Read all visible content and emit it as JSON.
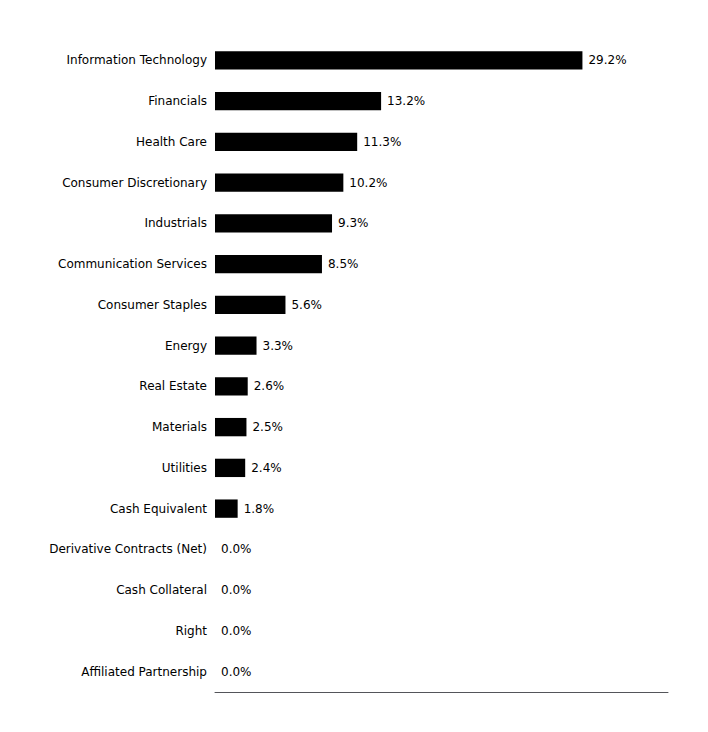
{
  "chart_data": {
    "type": "bar",
    "orientation": "horizontal",
    "categories": [
      "Information Technology",
      "Financials",
      "Health Care",
      "Consumer Discretionary",
      "Industrials",
      "Communication Services",
      "Consumer Staples",
      "Energy",
      "Real Estate",
      "Materials",
      "Utilities",
      "Cash Equivalent",
      "Derivative Contracts (Net)",
      "Cash Collateral",
      "Right",
      "Affiliated Partnership"
    ],
    "values": [
      29.2,
      13.2,
      11.3,
      10.2,
      9.3,
      8.5,
      5.6,
      3.3,
      2.6,
      2.5,
      2.4,
      1.8,
      0.0,
      0.0,
      0.0,
      0.0
    ],
    "value_labels": [
      "29.2%",
      "13.2%",
      "11.3%",
      "10.2%",
      "9.3%",
      "8.5%",
      "5.6%",
      "3.3%",
      "2.6%",
      "2.5%",
      "2.4%",
      "1.8%",
      "0.0%",
      "0.0%",
      "0.0%",
      "0.0%"
    ],
    "data_labels": true,
    "color": "#000000",
    "xlim": [
      0,
      36
    ],
    "tick_labels": "y",
    "grid": false
  }
}
